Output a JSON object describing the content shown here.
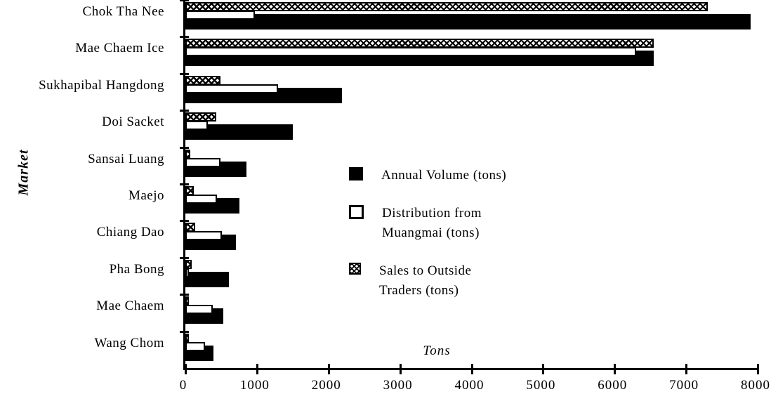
{
  "figure": {
    "background_color": "#ffffff",
    "ink_color": "#000000"
  },
  "chart_data": {
    "type": "bar",
    "orientation": "horizontal",
    "title": "",
    "xlabel": "Tons",
    "ylabel": "Market",
    "xlim": [
      0,
      8000
    ],
    "xticks": [
      0,
      1000,
      2000,
      3000,
      4000,
      5000,
      6000,
      7000,
      8000
    ],
    "grid": false,
    "categories": [
      "Chok Tha Nee",
      "Mae Chaem Ice",
      "Sukhapibal Hangdong",
      "Doi Sacket",
      "Sansai Luang",
      "Maejo",
      "Chiang Dao",
      "Pha Bong",
      "Mae Chaem",
      "Wang Chom"
    ],
    "series": [
      {
        "name": "Annual Volume (tons)",
        "style": "solid-black",
        "values": [
          7900,
          6550,
          2190,
          1500,
          850,
          760,
          710,
          610,
          530,
          390
        ]
      },
      {
        "name": "Distribution from Muangmai (tons)",
        "style": "white-outline",
        "values": [
          970,
          6300,
          1300,
          310,
          490,
          440,
          510,
          50,
          380,
          270
        ]
      },
      {
        "name": "Sales to Outside Traders (tons)",
        "style": "crosshatch",
        "values": [
          7300,
          6550,
          490,
          430,
          70,
          120,
          140,
          90,
          50,
          50
        ]
      }
    ],
    "legend": {
      "position": "center-right",
      "entries": [
        {
          "label": "Annual Volume (tons)",
          "swatch": "solid-black"
        },
        {
          "label": "Distribution from\nMuangmai (tons)",
          "swatch": "white-outline"
        },
        {
          "label": "Sales to Outside\nTraders (tons)",
          "swatch": "crosshatch"
        }
      ]
    }
  }
}
